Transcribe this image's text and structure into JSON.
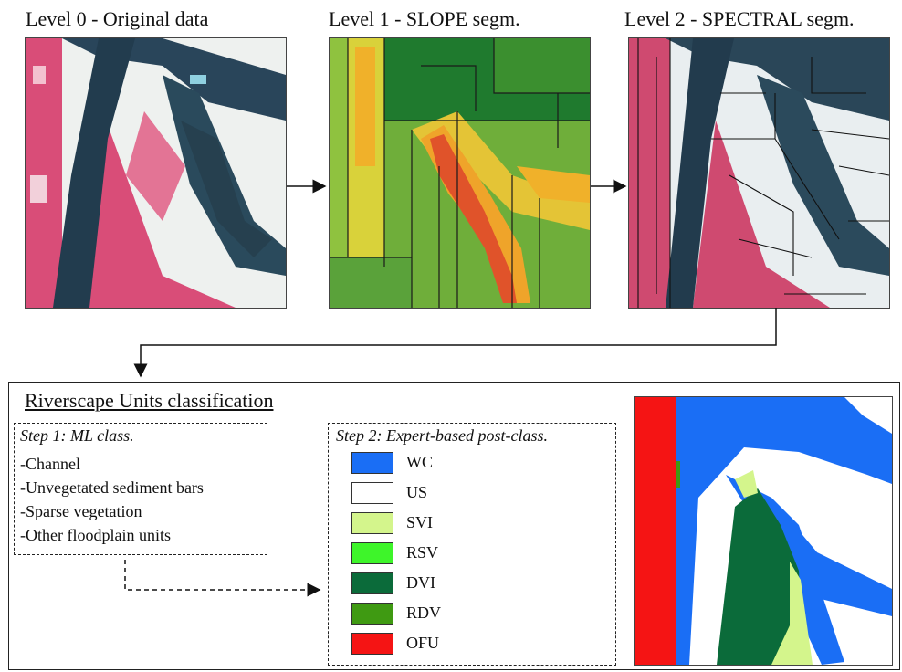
{
  "levels": {
    "l0_title": "Level 0 - Original data",
    "l1_title": "Level 1 - SLOPE segm.",
    "l2_title": "Level 2 - SPECTRAL segm."
  },
  "classification": {
    "title": "Riverscape Units classification",
    "step1": {
      "title": "Step 1: ML class.",
      "items": [
        "-Channel",
        "-Unvegetated sediment bars",
        "-Sparse vegetation",
        "-Other floodplain units"
      ]
    },
    "step2": {
      "title": "Step 2: Expert-based post-class.",
      "legend": [
        {
          "label": "WC",
          "color": "#1a6ef5"
        },
        {
          "label": "US",
          "color": "#ffffff"
        },
        {
          "label": "SVI",
          "color": "#d4f58c"
        },
        {
          "label": "RSV",
          "color": "#3ef52a"
        },
        {
          "label": "DVI",
          "color": "#0b6b3a"
        },
        {
          "label": "RDV",
          "color": "#3f9a12"
        },
        {
          "label": "OFU",
          "color": "#f51414"
        }
      ]
    }
  }
}
